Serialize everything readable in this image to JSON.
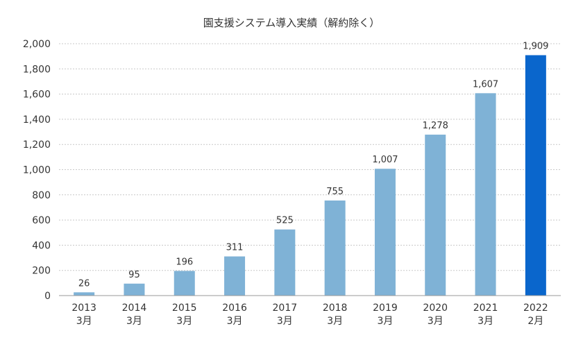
{
  "chart_data": {
    "type": "bar",
    "title": "園支援システム導入実績（解約除く）",
    "xlabel": "",
    "ylabel": "",
    "categories": [
      {
        "year": "2013",
        "month": "3月"
      },
      {
        "year": "2014",
        "month": "3月"
      },
      {
        "year": "2015",
        "month": "3月"
      },
      {
        "year": "2016",
        "month": "3月"
      },
      {
        "year": "2017",
        "month": "3月"
      },
      {
        "year": "2018",
        "month": "3月"
      },
      {
        "year": "2019",
        "month": "3月"
      },
      {
        "year": "2020",
        "month": "3月"
      },
      {
        "year": "2021",
        "month": "3月"
      },
      {
        "year": "2022",
        "month": "2月"
      }
    ],
    "values": [
      26,
      95,
      196,
      311,
      525,
      755,
      1007,
      1278,
      1607,
      1909
    ],
    "value_labels": [
      "26",
      "95",
      "196",
      "311",
      "525",
      "755",
      "1,007",
      "1,278",
      "1,607",
      "1,909"
    ],
    "ylim": [
      0,
      2000
    ],
    "yticks": [
      0,
      200,
      400,
      600,
      800,
      1000,
      1200,
      1400,
      1600,
      1800,
      2000
    ],
    "ytick_labels": [
      "0",
      "200",
      "400",
      "600",
      "800",
      "1,000",
      "1,200",
      "1,400",
      "1,600",
      "1,800",
      "2,000"
    ],
    "grid": true,
    "colors": {
      "bar": "#7fb2d6",
      "highlight": "#0a66cc",
      "grid": "#c8c8c8",
      "axis": "#999999"
    },
    "highlight_index": 9
  }
}
